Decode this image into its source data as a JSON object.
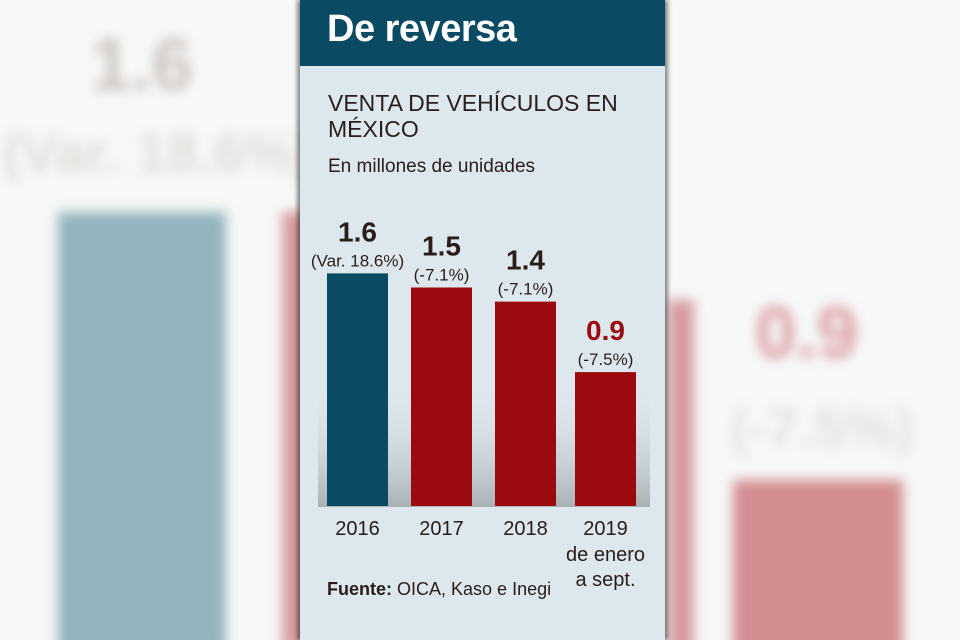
{
  "header": {
    "title": "De reversa"
  },
  "subtitle": "VENTA DE VEHÍCULOS EN MÉXICO",
  "units": "En millones de unidades",
  "source": {
    "label": "Fuente:",
    "text": "OICA, Kaso e Inegi"
  },
  "colors": {
    "header_bg": "#0b4a63",
    "bar_2016": "#0b4a63",
    "bar_other": "#9a0a0f",
    "highlight_value": "#9a0a0f",
    "text": "#2a1d1a",
    "panel_bg": "#dde8ee"
  },
  "background": {
    "left_value": "1.6",
    "left_var": "(Var. 18.6%)",
    "right_value": "0.9",
    "right_var": "(-7.5%)"
  },
  "chart_data": {
    "type": "bar",
    "title": "VENTA DE VEHÍCULOS EN MÉXICO",
    "subtitle": "En millones de unidades",
    "xlabel": "",
    "ylabel": "",
    "unit": "millones de unidades",
    "grid": false,
    "legend": "none",
    "categories": [
      {
        "year": "2016",
        "note": ""
      },
      {
        "year": "2017",
        "note": ""
      },
      {
        "year": "2018",
        "note": ""
      },
      {
        "year": "2019",
        "note": "de enero a sept."
      }
    ],
    "values": [
      1.6,
      1.5,
      1.4,
      0.9
    ],
    "value_labels": [
      "1.6",
      "1.5",
      "1.4",
      "0.9"
    ],
    "change_labels": [
      "(Var. 18.6%)",
      "(-7.1%)",
      "(-7.1%)",
      "(-7.5%)"
    ],
    "highlighted_index": 3
  }
}
